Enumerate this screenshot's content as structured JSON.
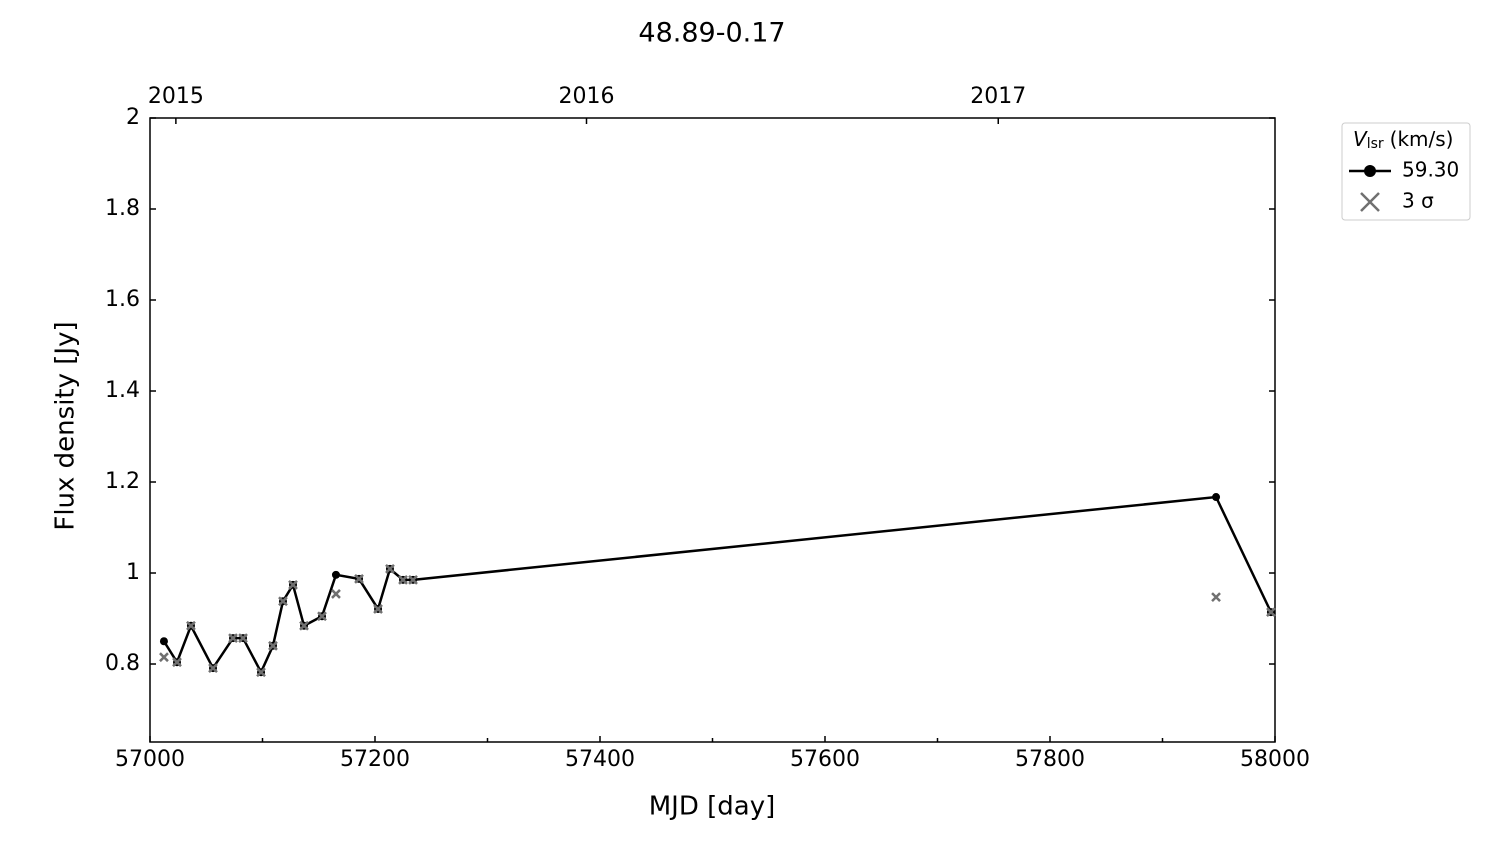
{
  "chart_data": {
    "type": "line",
    "title": "48.89-0.17",
    "xlabel": "MJD [day]",
    "ylabel": "Flux density [Jy]",
    "x": [
      57012.4,
      57024,
      57036.4,
      57056,
      57073.8,
      57082.7,
      57098.7,
      57109.3,
      57118.2,
      57127.1,
      57136.9,
      57152.9,
      57165.3,
      57185.8,
      57202.7,
      57213.3,
      57224.9,
      57233.8,
      57947.6,
      57996.4
    ],
    "series": [
      {
        "name": "59.30",
        "color": "#000000",
        "marker": "dot",
        "values": [
          0.85,
          0.804,
          0.884,
          0.791,
          0.857,
          0.857,
          0.782,
          0.84,
          0.938,
          0.974,
          0.884,
          0.905,
          0.996,
          0.987,
          0.921,
          1.009,
          0.985,
          0.985,
          1.167,
          0.914
        ]
      },
      {
        "name": "3 σ",
        "color": "#707070",
        "marker": "cross",
        "values": [
          0.815,
          0.804,
          0.884,
          0.791,
          0.857,
          0.857,
          0.782,
          0.84,
          0.938,
          0.974,
          0.884,
          0.905,
          0.954,
          0.987,
          0.921,
          1.009,
          0.985,
          0.985,
          0.947,
          0.914
        ]
      }
    ],
    "legend_title": {
      "symbol": "V",
      "subscript": "lsr",
      "unit": "(km/s)"
    },
    "legend": "outside upper right",
    "xlim": [
      57000,
      58000
    ],
    "xticks": [
      57000,
      57200,
      57400,
      57600,
      57800,
      58000
    ],
    "xticks_minor": [
      57100,
      57300,
      57500,
      57700,
      57900
    ],
    "x2ticks": [
      {
        "value": 57023,
        "label": "2015"
      },
      {
        "value": 57388,
        "label": "2016"
      },
      {
        "value": 57754,
        "label": "2017"
      }
    ],
    "ylim": [
      0.6286,
      2.0
    ],
    "yticks": [
      0.8,
      1.0,
      1.2,
      1.4,
      1.6,
      1.8,
      2.0
    ]
  }
}
